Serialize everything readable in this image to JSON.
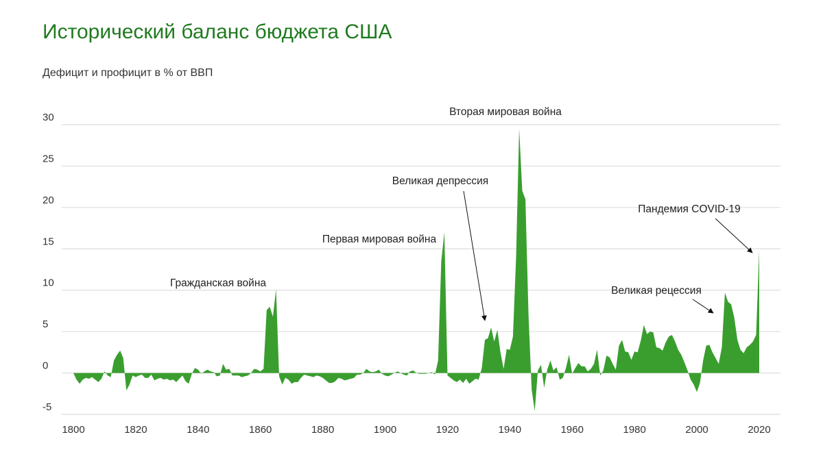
{
  "title": "Исторический баланс бюджета США",
  "subtitle": "Дефицит и профицит в % от ВВП",
  "chart_data": {
    "type": "area",
    "fill_color": "#3a9e2f",
    "grid": true,
    "xlim": [
      1800,
      2020
    ],
    "ylim": [
      -5,
      30
    ],
    "x_ticks": [
      1800,
      1820,
      1840,
      1860,
      1880,
      1900,
      1920,
      1940,
      1960,
      1980,
      2000,
      2020
    ],
    "y_ticks": [
      -5,
      0,
      5,
      10,
      15,
      20,
      25,
      30
    ],
    "points": [
      [
        1800,
        0
      ],
      [
        1801,
        -0.8
      ],
      [
        1802,
        -1.3
      ],
      [
        1803,
        -0.8
      ],
      [
        1804,
        -0.6
      ],
      [
        1805,
        -0.7
      ],
      [
        1806,
        -0.5
      ],
      [
        1807,
        -0.8
      ],
      [
        1808,
        -1.1
      ],
      [
        1809,
        -0.7
      ],
      [
        1810,
        0.2
      ],
      [
        1811,
        -0.3
      ],
      [
        1812,
        -0.5
      ],
      [
        1813,
        1.5
      ],
      [
        1814,
        2.2
      ],
      [
        1815,
        2.7
      ],
      [
        1816,
        1.8
      ],
      [
        1817,
        -2.1
      ],
      [
        1818,
        -1.4
      ],
      [
        1819,
        -0.3
      ],
      [
        1820,
        -0.5
      ],
      [
        1821,
        -0.3
      ],
      [
        1822,
        -0.2
      ],
      [
        1823,
        -0.6
      ],
      [
        1824,
        -0.6
      ],
      [
        1825,
        -0.2
      ],
      [
        1826,
        -0.9
      ],
      [
        1827,
        -0.7
      ],
      [
        1828,
        -0.6
      ],
      [
        1829,
        -0.8
      ],
      [
        1830,
        -0.7
      ],
      [
        1831,
        -0.9
      ],
      [
        1832,
        -0.8
      ],
      [
        1833,
        -1.1
      ],
      [
        1834,
        -0.7
      ],
      [
        1835,
        -0.3
      ],
      [
        1836,
        -1.0
      ],
      [
        1837,
        -1.3
      ],
      [
        1838,
        -0.1
      ],
      [
        1839,
        0.6
      ],
      [
        1840,
        0.4
      ],
      [
        1841,
        -0.1
      ],
      [
        1842,
        0.2
      ],
      [
        1843,
        0.4
      ],
      [
        1844,
        0.2
      ],
      [
        1845,
        0.1
      ],
      [
        1846,
        -0.4
      ],
      [
        1847,
        -0.3
      ],
      [
        1848,
        1.1
      ],
      [
        1849,
        0.4
      ],
      [
        1850,
        0.5
      ],
      [
        1851,
        -0.3
      ],
      [
        1852,
        -0.3
      ],
      [
        1853,
        -0.3
      ],
      [
        1854,
        -0.5
      ],
      [
        1855,
        -0.4
      ],
      [
        1856,
        -0.3
      ],
      [
        1857,
        0.0
      ],
      [
        1858,
        0.5
      ],
      [
        1859,
        0.4
      ],
      [
        1860,
        0.2
      ],
      [
        1861,
        0.5
      ],
      [
        1862,
        7.6
      ],
      [
        1863,
        8.0
      ],
      [
        1864,
        6.8
      ],
      [
        1865,
        10.1
      ],
      [
        1866,
        -0.4
      ],
      [
        1867,
        -1.4
      ],
      [
        1868,
        -0.6
      ],
      [
        1869,
        -0.8
      ],
      [
        1870,
        -1.3
      ],
      [
        1871,
        -1.1
      ],
      [
        1872,
        -1.1
      ],
      [
        1873,
        -0.6
      ],
      [
        1874,
        -0.2
      ],
      [
        1875,
        -0.3
      ],
      [
        1876,
        -0.4
      ],
      [
        1877,
        -0.5
      ],
      [
        1878,
        -0.3
      ],
      [
        1879,
        -0.4
      ],
      [
        1880,
        -0.6
      ],
      [
        1881,
        -0.9
      ],
      [
        1882,
        -1.2
      ],
      [
        1883,
        -1.2
      ],
      [
        1884,
        -1.0
      ],
      [
        1885,
        -0.6
      ],
      [
        1886,
        -0.7
      ],
      [
        1887,
        -0.9
      ],
      [
        1888,
        -0.8
      ],
      [
        1889,
        -0.7
      ],
      [
        1890,
        -0.6
      ],
      [
        1891,
        -0.2
      ],
      [
        1892,
        -0.2
      ],
      [
        1893,
        0.0
      ],
      [
        1894,
        0.5
      ],
      [
        1895,
        0.2
      ],
      [
        1896,
        0.1
      ],
      [
        1897,
        0.2
      ],
      [
        1898,
        0.4
      ],
      [
        1899,
        -0.1
      ],
      [
        1900,
        -0.3
      ],
      [
        1901,
        -0.4
      ],
      [
        1902,
        -0.2
      ],
      [
        1903,
        0.0
      ],
      [
        1904,
        0.2
      ],
      [
        1905,
        0.0
      ],
      [
        1906,
        -0.2
      ],
      [
        1907,
        -0.3
      ],
      [
        1908,
        0.2
      ],
      [
        1909,
        0.3
      ],
      [
        1910,
        0.0
      ],
      [
        1911,
        -0.1
      ],
      [
        1912,
        -0.1
      ],
      [
        1913,
        -0.1
      ],
      [
        1914,
        0.0
      ],
      [
        1915,
        0.1
      ],
      [
        1916,
        -0.2
      ],
      [
        1917,
        1.5
      ],
      [
        1918,
        13.5
      ],
      [
        1919,
        17.0
      ],
      [
        1920,
        -0.3
      ],
      [
        1921,
        -0.6
      ],
      [
        1922,
        -0.9
      ],
      [
        1923,
        -1.1
      ],
      [
        1924,
        -0.8
      ],
      [
        1925,
        -1.2
      ],
      [
        1926,
        -0.7
      ],
      [
        1927,
        -1.3
      ],
      [
        1928,
        -1.0
      ],
      [
        1929,
        -0.7
      ],
      [
        1930,
        -0.8
      ],
      [
        1931,
        0.6
      ],
      [
        1932,
        4.0
      ],
      [
        1933,
        4.2
      ],
      [
        1934,
        5.5
      ],
      [
        1935,
        3.8
      ],
      [
        1936,
        5.2
      ],
      [
        1937,
        2.5
      ],
      [
        1938,
        0.5
      ],
      [
        1939,
        2.9
      ],
      [
        1940,
        2.8
      ],
      [
        1941,
        4.4
      ],
      [
        1942,
        14.0
      ],
      [
        1943,
        29.5
      ],
      [
        1944,
        22.0
      ],
      [
        1945,
        21.0
      ],
      [
        1946,
        7.0
      ],
      [
        1947,
        -2.0
      ],
      [
        1948,
        -4.6
      ],
      [
        1949,
        0.3
      ],
      [
        1950,
        1.0
      ],
      [
        1951,
        -1.8
      ],
      [
        1952,
        0.4
      ],
      [
        1953,
        1.5
      ],
      [
        1954,
        0.3
      ],
      [
        1955,
        0.7
      ],
      [
        1956,
        -0.8
      ],
      [
        1957,
        -0.6
      ],
      [
        1958,
        0.6
      ],
      [
        1959,
        2.2
      ],
      [
        1960,
        -0.1
      ],
      [
        1961,
        0.6
      ],
      [
        1962,
        1.2
      ],
      [
        1963,
        0.8
      ],
      [
        1964,
        0.8
      ],
      [
        1965,
        0.2
      ],
      [
        1966,
        0.5
      ],
      [
        1967,
        1.1
      ],
      [
        1968,
        2.8
      ],
      [
        1969,
        -0.3
      ],
      [
        1970,
        0.3
      ],
      [
        1971,
        2.1
      ],
      [
        1972,
        1.9
      ],
      [
        1973,
        1.1
      ],
      [
        1974,
        0.4
      ],
      [
        1975,
        3.3
      ],
      [
        1976,
        4.0
      ],
      [
        1977,
        2.6
      ],
      [
        1978,
        2.5
      ],
      [
        1979,
        1.6
      ],
      [
        1980,
        2.6
      ],
      [
        1981,
        2.5
      ],
      [
        1982,
        3.9
      ],
      [
        1983,
        5.8
      ],
      [
        1984,
        4.7
      ],
      [
        1985,
        5.0
      ],
      [
        1986,
        4.9
      ],
      [
        1987,
        3.1
      ],
      [
        1988,
        3.0
      ],
      [
        1989,
        2.7
      ],
      [
        1990,
        3.7
      ],
      [
        1991,
        4.4
      ],
      [
        1992,
        4.6
      ],
      [
        1993,
        3.8
      ],
      [
        1994,
        2.8
      ],
      [
        1995,
        2.2
      ],
      [
        1996,
        1.3
      ],
      [
        1997,
        0.3
      ],
      [
        1998,
        -0.8
      ],
      [
        1999,
        -1.4
      ],
      [
        2000,
        -2.3
      ],
      [
        2001,
        -1.2
      ],
      [
        2002,
        1.5
      ],
      [
        2003,
        3.3
      ],
      [
        2004,
        3.4
      ],
      [
        2005,
        2.5
      ],
      [
        2006,
        1.8
      ],
      [
        2007,
        1.1
      ],
      [
        2008,
        3.1
      ],
      [
        2009,
        9.7
      ],
      [
        2010,
        8.6
      ],
      [
        2011,
        8.3
      ],
      [
        2012,
        6.7
      ],
      [
        2013,
        4.0
      ],
      [
        2014,
        2.8
      ],
      [
        2015,
        2.4
      ],
      [
        2016,
        3.1
      ],
      [
        2017,
        3.4
      ],
      [
        2018,
        3.8
      ],
      [
        2019,
        4.6
      ],
      [
        2020,
        14.9
      ]
    ],
    "annotations": [
      {
        "text": "Гражданская война",
        "x": 1865,
        "y": 10.1,
        "arrow": false
      },
      {
        "text": "Первая мировая война",
        "x": 1919,
        "y": 17.0,
        "arrow": false
      },
      {
        "text": "Великая депрессия",
        "x": 1932,
        "y": 6.0,
        "arrow": true
      },
      {
        "text": "Вторая мировая война",
        "x": 1943,
        "y": 29.5,
        "arrow": false
      },
      {
        "text": "Великая рецессия",
        "x": 2008,
        "y": 7.5,
        "arrow": true
      },
      {
        "text": "Пандемия COVID-19",
        "x": 2020,
        "y": 14.8,
        "arrow": true
      }
    ]
  }
}
